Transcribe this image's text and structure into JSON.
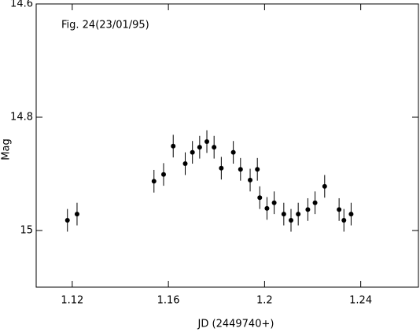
{
  "chart_data": {
    "type": "scatter",
    "annotation": "Fig. 24(23/01/95)",
    "xlabel": "JD (2449740+)",
    "ylabel": "Mag",
    "series": [
      {
        "color": "#000000",
        "x": [
          1.118,
          1.122,
          1.154,
          1.158,
          1.162,
          1.167,
          1.17,
          1.173,
          1.176,
          1.179,
          1.182,
          1.187,
          1.19,
          1.194,
          1.197,
          1.198,
          1.201,
          1.204,
          1.208,
          1.211,
          1.214,
          1.218,
          1.221,
          1.225,
          1.231,
          1.233,
          1.236
        ],
        "values": [
          14.982,
          14.971,
          14.913,
          14.901,
          14.851,
          14.882,
          14.862,
          14.853,
          14.843,
          14.853,
          14.89,
          14.862,
          14.892,
          14.911,
          14.892,
          14.942,
          14.961,
          14.951,
          14.971,
          14.982,
          14.971,
          14.963,
          14.951,
          14.922,
          14.963,
          14.982,
          14.971
        ],
        "errors": [
          0.02,
          0.02,
          0.02,
          0.02,
          0.02,
          0.02,
          0.02,
          0.02,
          0.02,
          0.02,
          0.02,
          0.02,
          0.02,
          0.02,
          0.02,
          0.02,
          0.02,
          0.02,
          0.02,
          0.02,
          0.02,
          0.02,
          0.02,
          0.02,
          0.02,
          0.02,
          0.02
        ]
      }
    ],
    "xlim": [
      1.105,
      1.264
    ],
    "xticks": [
      1.12,
      1.16,
      1.2,
      1.24
    ],
    "ylim": [
      14.6,
      15.1
    ],
    "yticks": [
      14.6,
      14.8,
      15
    ],
    "y_inverted": true
  }
}
